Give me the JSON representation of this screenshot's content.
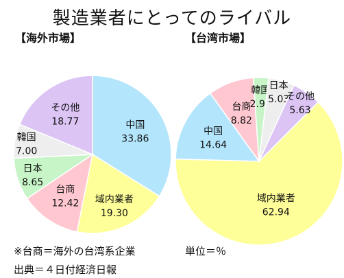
{
  "title": "製造業者にとってのライバル",
  "unit": "単位＝％",
  "footnote": "※台商＝海外の台湾系企業",
  "source": "出典＝４日付経済日報",
  "chart_data": [
    {
      "type": "pie",
      "title": "【海外市場】",
      "slices": [
        {
          "label": "中国",
          "value": 33.86,
          "display": "33.86",
          "color": "#b3e5fc"
        },
        {
          "label": "域内業者",
          "value": 19.3,
          "display": "19.30",
          "color": "#ffff99"
        },
        {
          "label": "台商",
          "value": 12.42,
          "display": "12.42",
          "color": "#ffc8d0"
        },
        {
          "label": "日本",
          "value": 8.65,
          "display": "8.65",
          "color": "#c8f5c8"
        },
        {
          "label": "韓国",
          "value": 7.0,
          "display": "7.00",
          "color": "#eeeeee"
        },
        {
          "label": "その他",
          "value": 18.77,
          "display": "18.77",
          "color": "#dcc4f4"
        }
      ]
    },
    {
      "type": "pie",
      "title": "【台湾市場】",
      "slices": [
        {
          "label": "域内業者",
          "value": 62.94,
          "display": "62.94",
          "color": "#ffff99"
        },
        {
          "label": "中国",
          "value": 14.64,
          "display": "14.64",
          "color": "#b3e5fc"
        },
        {
          "label": "台商",
          "value": 8.82,
          "display": "8.82",
          "color": "#ffc8d0"
        },
        {
          "label": "韓国",
          "value": 2.94,
          "display": "2.94",
          "color": "#c8f5c8"
        },
        {
          "label": "日本",
          "value": 5.03,
          "display": "5.03",
          "color": "#eeeeee"
        },
        {
          "label": "その他",
          "value": 5.63,
          "display": "5.63",
          "color": "#dcc4f4"
        }
      ]
    }
  ]
}
